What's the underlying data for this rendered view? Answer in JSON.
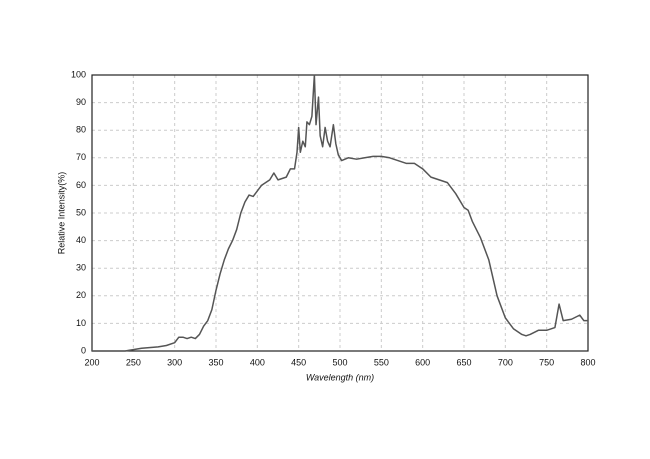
{
  "chart_data": {
    "type": "line",
    "x_label": "Wavelength (nm)",
    "y_label": "Relative Intensity(%)",
    "xlim": [
      200,
      800
    ],
    "ylim": [
      0,
      100
    ],
    "xticks": [
      200,
      250,
      300,
      350,
      400,
      450,
      500,
      550,
      600,
      650,
      700,
      750,
      800
    ],
    "yticks": [
      0,
      10,
      20,
      30,
      40,
      50,
      60,
      70,
      80,
      90,
      100
    ],
    "grid": true,
    "series": [
      {
        "color": "#555555",
        "x": [
          200,
          240,
          250,
          260,
          280,
          290,
          300,
          305,
          310,
          315,
          320,
          325,
          330,
          335,
          340,
          345,
          350,
          355,
          360,
          365,
          370,
          375,
          380,
          385,
          390,
          395,
          400,
          405,
          410,
          415,
          420,
          425,
          430,
          435,
          440,
          445,
          448,
          450,
          452,
          455,
          458,
          460,
          463,
          466,
          469,
          471,
          474,
          476,
          479,
          482,
          485,
          488,
          492,
          495,
          498,
          502,
          510,
          520,
          530,
          540,
          550,
          560,
          570,
          580,
          590,
          600,
          610,
          620,
          630,
          640,
          650,
          655,
          660,
          670,
          680,
          690,
          700,
          710,
          720,
          725,
          730,
          740,
          750,
          760,
          765,
          770,
          780,
          790,
          795,
          800
        ],
        "values": [
          0,
          0,
          0.5,
          1,
          1.5,
          2,
          3,
          5,
          5,
          4.5,
          5,
          4.5,
          6,
          9,
          11,
          15,
          22,
          28,
          33,
          37,
          40,
          44,
          50,
          54,
          56.5,
          56,
          58,
          60,
          61,
          62,
          64.5,
          62,
          62.5,
          63,
          66,
          66,
          72,
          81,
          72,
          76,
          74,
          83,
          82,
          85,
          100,
          82,
          92,
          78,
          74,
          81,
          76,
          74,
          82,
          75,
          71,
          69,
          70,
          69.5,
          70,
          70.5,
          70.5,
          70,
          69,
          68,
          68,
          66,
          63,
          62,
          61,
          57,
          52,
          51,
          47,
          41,
          33,
          20,
          12,
          8,
          6,
          5.5,
          6,
          7.5,
          7.5,
          8.5,
          17,
          11,
          11.5,
          13,
          11,
          11
        ]
      }
    ]
  }
}
